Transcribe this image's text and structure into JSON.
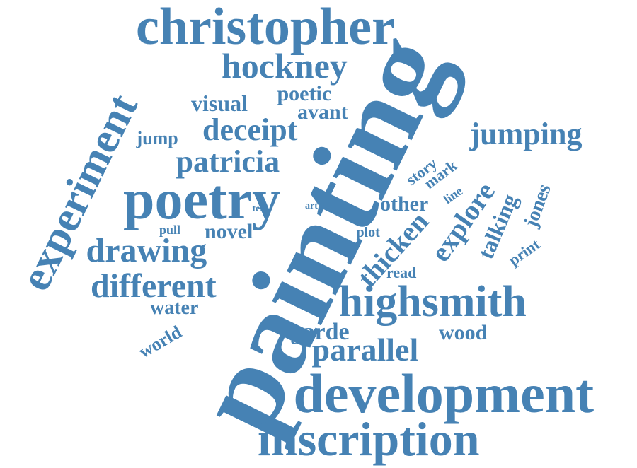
{
  "word_color": "#4682b4",
  "background_color": "#ffffff",
  "words": [
    {
      "text": "christopher"
    },
    {
      "text": "painting"
    },
    {
      "text": "development"
    },
    {
      "text": "inscription"
    },
    {
      "text": "experiment"
    },
    {
      "text": "poetry"
    },
    {
      "text": "highsmith"
    },
    {
      "text": "hockney"
    },
    {
      "text": "jumping"
    },
    {
      "text": "drawing"
    },
    {
      "text": "different"
    },
    {
      "text": "patricia"
    },
    {
      "text": "deceipt"
    },
    {
      "text": "parallel"
    },
    {
      "text": "thicken"
    },
    {
      "text": "explore"
    },
    {
      "text": "poetic"
    },
    {
      "text": "visual"
    },
    {
      "text": "avant"
    },
    {
      "text": "garde"
    },
    {
      "text": "wood"
    },
    {
      "text": "talking"
    },
    {
      "text": "jones"
    },
    {
      "text": "novel"
    },
    {
      "text": "other"
    },
    {
      "text": "water"
    },
    {
      "text": "world"
    },
    {
      "text": "jump"
    },
    {
      "text": "story"
    },
    {
      "text": "mark"
    },
    {
      "text": "print"
    },
    {
      "text": "read"
    },
    {
      "text": "plot"
    },
    {
      "text": "pull"
    },
    {
      "text": "line"
    },
    {
      "text": "tell"
    },
    {
      "text": "art"
    }
  ]
}
